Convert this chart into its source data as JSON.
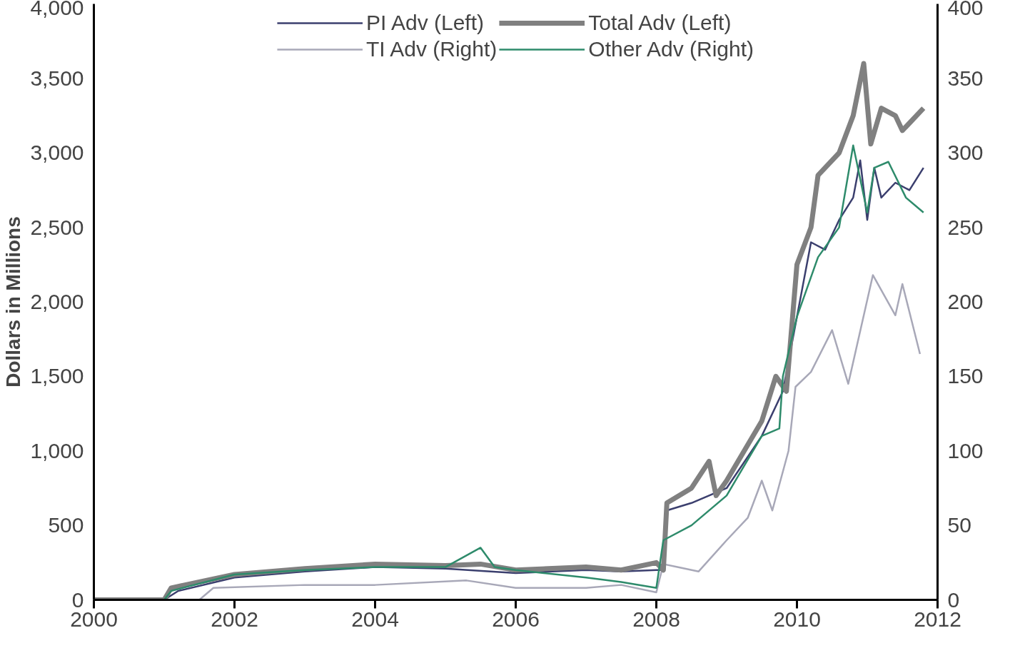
{
  "chart_data": {
    "type": "line",
    "ylabel": "Dollars in Millions",
    "legend": "top",
    "grid": false,
    "line_style": "solid",
    "xlim": [
      2000,
      2012
    ],
    "xticks": [
      2000,
      2002,
      2004,
      2006,
      2008,
      2010,
      2012
    ],
    "ylim": [
      0,
      4000
    ],
    "yticks": [
      {
        "value": 0,
        "label": "0"
      },
      {
        "value": 500,
        "label": "500"
      },
      {
        "value": 1000,
        "label": "1,000"
      },
      {
        "value": 1500,
        "label": "1,500"
      },
      {
        "value": 2000,
        "label": "2,000"
      },
      {
        "value": 2500,
        "label": "2,500"
      },
      {
        "value": 3000,
        "label": "3,000"
      },
      {
        "value": 3500,
        "label": "3,500"
      },
      {
        "value": 4000,
        "label": "4,000"
      }
    ],
    "y2lim": [
      0,
      400
    ],
    "y2ticks": [
      0,
      50,
      100,
      150,
      200,
      250,
      300,
      350,
      400
    ],
    "series": [
      {
        "name": "PI Adv (Left)",
        "color": "#3b3f6e",
        "x": [
          2000,
          2001,
          2001.2,
          2002,
          2003,
          2004,
          2005,
          2006,
          2007,
          2007.5,
          2008,
          2008.1,
          2008.15,
          2008.5,
          2009,
          2009.5,
          2009.8,
          2010,
          2010.2,
          2010.4,
          2010.6,
          2010.8,
          2010.9,
          2011,
          2011.1,
          2011.2,
          2011.4,
          2011.6,
          2011.8
        ],
        "values": [
          0,
          0,
          60,
          150,
          190,
          220,
          210,
          180,
          200,
          190,
          200,
          200,
          600,
          650,
          750,
          1100,
          1400,
          1900,
          2400,
          2350,
          2550,
          2700,
          2950,
          2550,
          2900,
          2700,
          2800,
          2750,
          2900
        ]
      },
      {
        "name": "TI Adv (Right)",
        "color": "#a8a8b8",
        "axis": "y2",
        "x": [
          2000,
          2001.5,
          2001.7,
          2003,
          2004,
          2005.3,
          2006,
          2007,
          2007.5,
          2008,
          2008.1,
          2008.3,
          2008.6,
          2009,
          2009.3,
          2009.5,
          2009.65,
          2009.88,
          2009.98,
          2010.2,
          2010.5,
          2010.73,
          2011.08,
          2011.4,
          2011.5,
          2011.75
        ],
        "values": [
          0,
          0,
          8,
          10,
          10,
          13,
          8,
          8,
          10,
          5,
          24,
          22,
          19,
          40,
          55,
          80,
          60,
          100,
          143,
          153,
          181,
          145,
          218,
          191,
          212,
          165
        ]
      },
      {
        "name": "Total Adv (Left)",
        "color": "#808080",
        "x": [
          2000,
          2001,
          2001.1,
          2002,
          2003,
          2004,
          2005,
          2005.5,
          2006,
          2007,
          2007.5,
          2008,
          2008.1,
          2008.15,
          2008.5,
          2008.75,
          2008.85,
          2009,
          2009.5,
          2009.7,
          2009.85,
          2010,
          2010.2,
          2010.3,
          2010.6,
          2010.8,
          2010.95,
          2011.05,
          2011.2,
          2011.4,
          2011.5,
          2011.6,
          2011.8
        ],
        "values": [
          0,
          0,
          80,
          170,
          210,
          240,
          230,
          240,
          200,
          220,
          200,
          250,
          200,
          650,
          750,
          930,
          700,
          800,
          1200,
          1500,
          1400,
          2250,
          2500,
          2850,
          3000,
          3250,
          3600,
          3060,
          3300,
          3250,
          3150,
          3200,
          3300
        ]
      },
      {
        "name": "Other Adv (Right)",
        "color": "#2e8b6b",
        "axis": "y2",
        "x": [
          2000,
          2001,
          2001.1,
          2002,
          2003,
          2004,
          2005,
          2005.5,
          2005.7,
          2006,
          2007,
          2007.5,
          2008,
          2008.1,
          2008.5,
          2009,
          2009.5,
          2009.75,
          2009.8,
          2010,
          2010.3,
          2010.6,
          2010.8,
          2011,
          2011.1,
          2011.3,
          2011.55,
          2011.8
        ],
        "values": [
          0,
          0,
          6,
          17,
          20,
          22,
          22,
          35,
          22,
          20,
          15,
          12,
          8,
          40,
          50,
          70,
          110,
          115,
          150,
          190,
          230,
          250,
          305,
          260,
          290,
          294,
          270,
          260
        ]
      }
    ]
  }
}
